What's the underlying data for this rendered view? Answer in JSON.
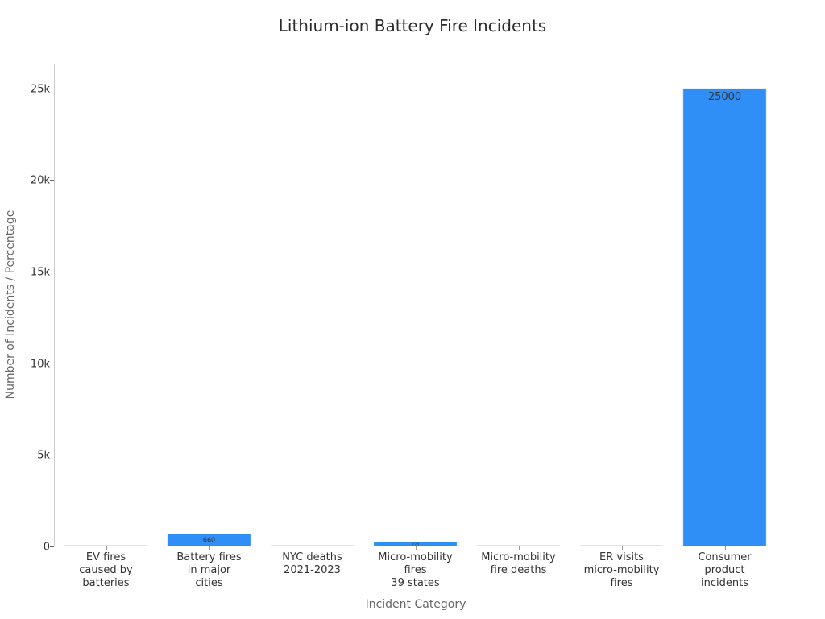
{
  "title": "Lithium-ion Battery Fire Incidents",
  "colors": {
    "bar": "#2f8ff7",
    "bar_small": "#dbe6f0",
    "axis": "#cccccc",
    "text": "#333333",
    "axis_title": "#666666"
  },
  "axes": {
    "x_title": "Incident Category",
    "y_title": "Number of Incidents / Percentage",
    "y_ticks": [
      "0",
      "5k",
      "10k",
      "15k",
      "20k",
      "25k"
    ]
  },
  "categories": [
    {
      "lines": [
        "EV fires",
        "caused by",
        "batteries"
      ]
    },
    {
      "lines": [
        "Battery fires",
        "in major",
        "cities"
      ]
    },
    {
      "lines": [
        "NYC deaths",
        "2021-2023"
      ]
    },
    {
      "lines": [
        "Micro-mobility",
        "fires",
        "39 states"
      ]
    },
    {
      "lines": [
        "Micro-mobility",
        "fire deaths"
      ]
    },
    {
      "lines": [
        "ER visits",
        "micro-mobility",
        "fires"
      ]
    },
    {
      "lines": [
        "Consumer",
        "product",
        "incidents"
      ]
    }
  ],
  "bar_labels": [
    "",
    "660",
    "",
    "220",
    "",
    "",
    "25000"
  ],
  "chart_data": {
    "type": "bar",
    "title": "Lithium-ion Battery Fire Incidents",
    "xlabel": "Incident Category",
    "ylabel": "Number of Incidents / Percentage",
    "categories": [
      "EV fires caused by batteries",
      "Battery fires in major cities",
      "NYC deaths 2021-2023",
      "Micro-mobility fires 39 states",
      "Micro-mobility fire deaths",
      "ER visits micro-mobility fires",
      "Consumer product incidents"
    ],
    "values": [
      25,
      660,
      18,
      220,
      19,
      19,
      25000
    ],
    "ylim": [
      0,
      26300
    ],
    "yticks": [
      0,
      5000,
      10000,
      15000,
      20000,
      25000
    ],
    "ytick_labels": [
      "0",
      "5k",
      "10k",
      "15k",
      "20k",
      "25k"
    ],
    "grid": false,
    "legend": null,
    "data_labels": [
      "",
      "660",
      "",
      "220",
      "",
      "",
      "25000"
    ]
  }
}
